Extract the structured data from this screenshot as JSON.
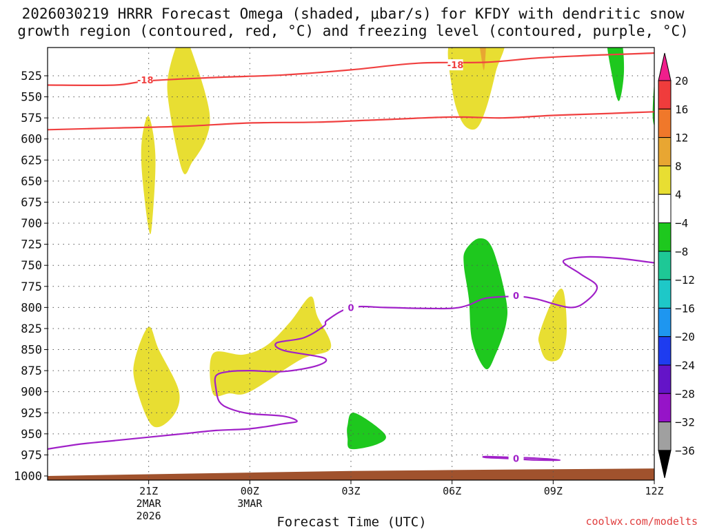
{
  "title": {
    "line1": "2026030219 HRRR Forecast Omega (shaded, μbar/s) for KFDY with dendritic snow",
    "line2": "growth region (contoured, red, °C) and freezing level (contoured, purple, °C)"
  },
  "chart_data": {
    "type": "heatmap",
    "subtype": "time-height cross section",
    "title": "2026030219 HRRR Forecast Omega (shaded, μbar/s) for KFDY with dendritic snow growth region (contoured, red, °C) and freezing level (contoured, purple, °C)",
    "xlabel": "Forecast Time (UTC)",
    "ylabel": "Pressure (mb)",
    "x_range_hours": [
      -1,
      17
    ],
    "y_range": [
      500,
      1000
    ],
    "y_ticks": [
      525,
      550,
      575,
      600,
      625,
      650,
      675,
      700,
      725,
      750,
      775,
      800,
      825,
      850,
      875,
      900,
      925,
      950,
      975,
      1000
    ],
    "x_ticks": [
      {
        "hour": 2,
        "label": "21Z",
        "sub1": "2MAR",
        "sub2": "2026"
      },
      {
        "hour": 5,
        "label": "00Z",
        "sub1": "3MAR",
        "sub2": ""
      },
      {
        "hour": 8,
        "label": "03Z",
        "sub1": "",
        "sub2": ""
      },
      {
        "hour": 11,
        "label": "06Z",
        "sub1": "",
        "sub2": ""
      },
      {
        "hour": 14,
        "label": "09Z",
        "sub1": "",
        "sub2": ""
      },
      {
        "hour": 17,
        "label": "12Z",
        "sub1": "",
        "sub2": ""
      }
    ],
    "colorbar": {
      "levels": [
        20,
        16,
        12,
        8,
        4,
        -4,
        -8,
        -12,
        -16,
        -20,
        -24,
        -28,
        -32,
        -36
      ],
      "colors": [
        "#f03c3c",
        "#f0782a",
        "#e8a632",
        "#e8de32",
        "#ffffff",
        "#1ec81e",
        "#1ec896",
        "#1ec8c8",
        "#1e96f0",
        "#1e3cf0",
        "#6414c8",
        "#9614c8",
        "#a0a0a0"
      ],
      "max_arrow_color": "#f01e8c",
      "min_arrow_color": "#000000"
    },
    "dgz_contours": [
      {
        "label": "-18",
        "label_hour": 1.9,
        "label_p": 530,
        "points": [
          [
            -1,
            536
          ],
          [
            1,
            536
          ],
          [
            2,
            531
          ],
          [
            4,
            527
          ],
          [
            6,
            524
          ],
          [
            8,
            518
          ],
          [
            10,
            510
          ],
          [
            12,
            509
          ],
          [
            13.5,
            504
          ],
          [
            15,
            501
          ],
          [
            17.5,
            497
          ],
          [
            18.0,
            493
          ]
        ]
      },
      {
        "label": "",
        "label_hour": null,
        "label_p": null,
        "points": [
          [
            -1,
            589
          ],
          [
            1,
            587
          ],
          [
            3,
            585
          ],
          [
            5,
            581
          ],
          [
            7,
            580
          ],
          [
            9,
            577
          ],
          [
            11,
            574
          ],
          [
            12.5,
            575
          ],
          [
            14,
            572
          ],
          [
            15.5,
            570
          ],
          [
            17.5,
            567
          ],
          [
            18.0,
            567
          ]
        ]
      },
      {
        "label": "-18",
        "label_hour": 11.1,
        "label_p": 512,
        "points": []
      }
    ],
    "freezing_level": {
      "label": "0",
      "label_points": [
        [
          8,
          800
        ],
        [
          12.9,
          786
        ],
        [
          12.9,
          979
        ]
      ],
      "main": [
        [
          -1,
          968
        ],
        [
          0,
          962
        ],
        [
          1,
          958
        ],
        [
          2,
          954
        ],
        [
          3,
          950
        ],
        [
          4,
          946
        ],
        [
          5,
          944
        ],
        [
          6,
          938
        ],
        [
          6.4,
          935
        ],
        [
          6.0,
          929
        ],
        [
          5,
          926
        ],
        [
          4.4,
          920
        ],
        [
          4.1,
          912
        ],
        [
          4.0,
          897
        ],
        [
          4.0,
          881
        ],
        [
          4.4,
          876
        ],
        [
          5,
          875
        ],
        [
          6,
          876
        ],
        [
          7,
          869
        ],
        [
          7.2,
          860
        ],
        [
          6,
          851
        ],
        [
          5.8,
          842
        ],
        [
          6.6,
          836
        ],
        [
          7.2,
          822
        ],
        [
          7.3,
          815
        ],
        [
          8,
          800
        ],
        [
          9,
          800
        ],
        [
          10,
          801
        ],
        [
          11,
          801
        ],
        [
          11.5,
          797
        ],
        [
          12,
          789
        ],
        [
          12.9,
          787
        ],
        [
          13.5,
          790
        ],
        [
          14.5,
          800
        ],
        [
          15,
          792
        ],
        [
          15.3,
          775
        ],
        [
          14.8,
          760
        ],
        [
          14.3,
          745
        ],
        [
          15,
          740
        ],
        [
          16,
          742
        ],
        [
          17,
          747
        ],
        [
          17.5,
          749
        ],
        [
          18,
          743
        ],
        [
          18.0,
          741
        ]
      ],
      "low": [
        [
          12.0,
          978
        ],
        [
          12.5,
          979
        ],
        [
          13.5,
          981
        ],
        [
          14.2,
          981
        ],
        [
          13.5,
          979
        ],
        [
          12.8,
          978
        ],
        [
          12.0,
          977
        ]
      ]
    },
    "omega_regions": [
      {
        "value": "4 to 8",
        "color": "#e8de32",
        "desc": "thin sliver near 20Z",
        "points": [
          [
            2.0,
            573
          ],
          [
            2.2,
            620
          ],
          [
            2.1,
            700
          ],
          [
            2.0,
            707
          ],
          [
            1.8,
            640
          ],
          [
            1.8,
            600
          ]
        ]
      },
      {
        "value": "4 to 8",
        "color": "#e8de32",
        "desc": "column 22Z-23Z",
        "points": [
          [
            2.6,
            520
          ],
          [
            3.0,
            478
          ],
          [
            3.4,
            510
          ],
          [
            3.8,
            568
          ],
          [
            3.7,
            600
          ],
          [
            3.3,
            627
          ],
          [
            3.0,
            638
          ],
          [
            2.6,
            560
          ]
        ]
      },
      {
        "value": "4 to 8",
        "color": "#e8de32",
        "desc": "low blob 21Z",
        "points": [
          [
            1.6,
            860
          ],
          [
            2.0,
            823
          ],
          [
            2.3,
            850
          ],
          [
            2.9,
            900
          ],
          [
            2.7,
            930
          ],
          [
            2.1,
            940
          ],
          [
            1.6,
            890
          ]
        ]
      },
      {
        "value": "4 to 8",
        "color": "#e8de32",
        "desc": "band around 00Z",
        "points": [
          [
            3.9,
            855
          ],
          [
            4.8,
            856
          ],
          [
            5.5,
            845
          ],
          [
            6.2,
            817
          ],
          [
            6.8,
            787
          ],
          [
            7.0,
            810
          ],
          [
            7.4,
            848
          ],
          [
            6.5,
            862
          ],
          [
            5.0,
            900
          ],
          [
            4.4,
            902
          ],
          [
            3.9,
            902
          ]
        ]
      },
      {
        "value": "4 to 8",
        "color": "#e8de32",
        "desc": "top column 06Z-07Z",
        "points": [
          [
            11.0,
            480
          ],
          [
            12.5,
            480
          ],
          [
            12.3,
            520
          ],
          [
            12.0,
            565
          ],
          [
            11.7,
            588
          ],
          [
            11.3,
            580
          ],
          [
            11.0,
            540
          ]
        ]
      },
      {
        "value": "4 to 8",
        "color": "#e8de32",
        "desc": "small blob 09Z",
        "points": [
          [
            13.6,
            830
          ],
          [
            14.0,
            790
          ],
          [
            14.3,
            780
          ],
          [
            14.4,
            830
          ],
          [
            14.2,
            860
          ],
          [
            13.8,
            862
          ],
          [
            13.6,
            845
          ]
        ]
      },
      {
        "value": "8 to 12",
        "color": "#e8a632",
        "desc": "core near 07Z top",
        "points": [
          [
            11.8,
            480
          ],
          [
            12.0,
            480
          ],
          [
            11.95,
            518
          ],
          [
            11.85,
            498
          ]
        ]
      },
      {
        "value": "-4 to -8",
        "color": "#1ec81e",
        "desc": "top column 10Z",
        "points": [
          [
            15.6,
            480
          ],
          [
            16.0,
            480
          ],
          [
            16.1,
            520
          ],
          [
            15.95,
            555
          ],
          [
            15.75,
            525
          ]
        ]
      },
      {
        "value": "-4 to -8",
        "color": "#1ec81e",
        "desc": "thin sliver 12Z",
        "points": [
          [
            17.0,
            535
          ],
          [
            17.05,
            560
          ],
          [
            17.1,
            590
          ],
          [
            17.0,
            585
          ],
          [
            16.95,
            570
          ]
        ]
      },
      {
        "value": "-4 to -8",
        "color": "#1ec81e",
        "desc": "column 07Z",
        "points": [
          [
            11.4,
            732
          ],
          [
            11.8,
            718
          ],
          [
            12.2,
            730
          ],
          [
            12.6,
            790
          ],
          [
            12.6,
            820
          ],
          [
            12.3,
            855
          ],
          [
            12.0,
            873
          ],
          [
            11.6,
            840
          ],
          [
            11.5,
            790
          ],
          [
            11.35,
            750
          ]
        ]
      },
      {
        "value": "-4 to -8",
        "color": "#1ec81e",
        "desc": "low blob 03Z",
        "points": [
          [
            7.9,
            940
          ],
          [
            8.1,
            925
          ],
          [
            9.0,
            950
          ],
          [
            8.8,
            962
          ],
          [
            8.0,
            968
          ],
          [
            7.9,
            955
          ]
        ]
      },
      {
        "value": "-4 to -8",
        "color": "#1ec81e",
        "desc": "edge blob 12Z",
        "points": [
          [
            18.0,
            678
          ],
          [
            17.5,
            695
          ],
          [
            17.2,
            720
          ],
          [
            17.1,
            780
          ],
          [
            17.2,
            850
          ],
          [
            17.5,
            890
          ],
          [
            18.0,
            905
          ]
        ]
      },
      {
        "value": "-8 to -12",
        "color": "#1ec896",
        "desc": "inner edge blob",
        "points": [
          [
            18.0,
            695
          ],
          [
            17.7,
            720
          ],
          [
            17.55,
            780
          ],
          [
            17.7,
            815
          ],
          [
            18.0,
            835
          ]
        ]
      }
    ],
    "ground": {
      "color": "#a0522d",
      "points": [
        [
          -1,
          1000
        ],
        [
          5,
          996
        ],
        [
          8,
          994
        ],
        [
          11,
          993
        ],
        [
          14,
          992
        ],
        [
          17.5,
          991
        ],
        [
          18,
          991
        ]
      ]
    }
  },
  "footer": {
    "xlabel": "Forecast Time (UTC)",
    "credit": "coolwx.com/modelts"
  },
  "colors": {
    "dgz": "#f04040",
    "freezing": "#a020c8",
    "grid": "#555555",
    "text": "#111111",
    "credit": "#e03c3c"
  }
}
